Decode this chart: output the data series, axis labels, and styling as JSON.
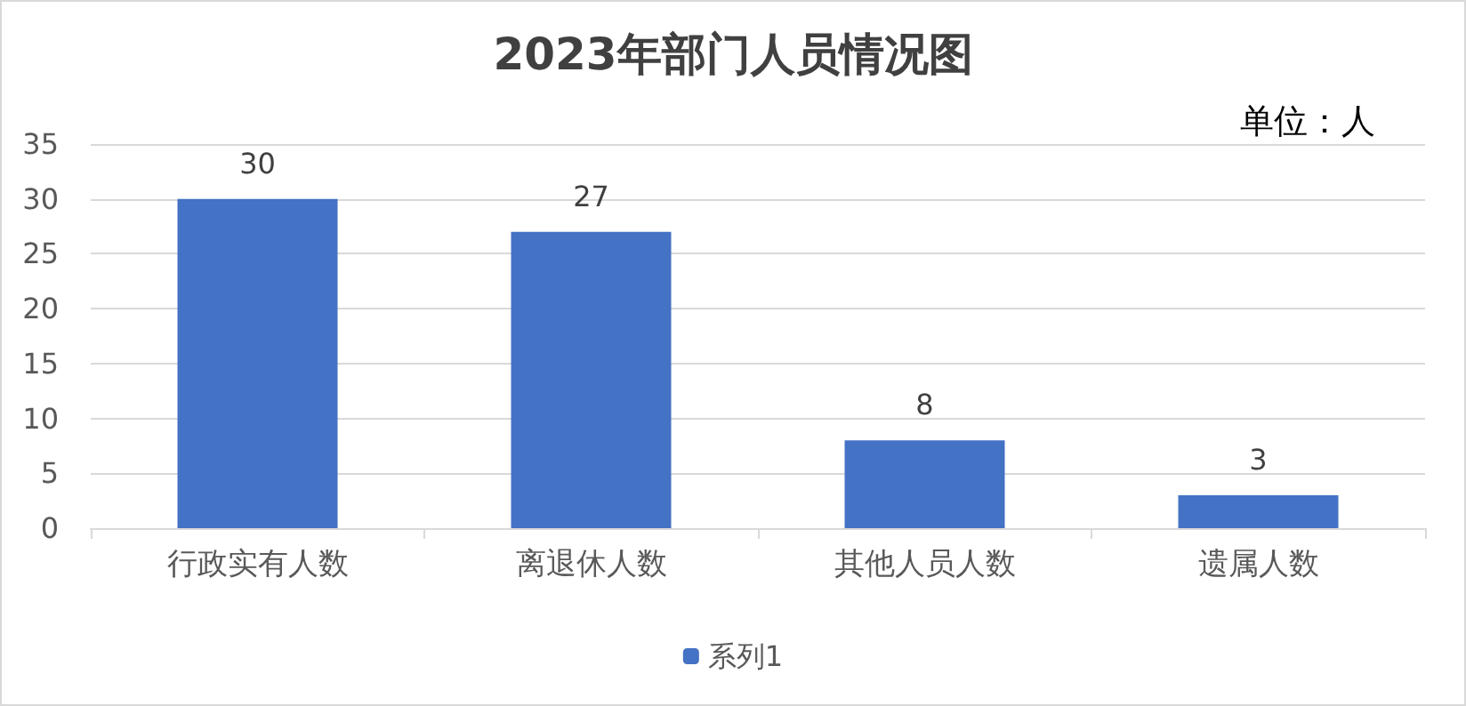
{
  "chart_data": {
    "type": "bar",
    "title": "2023年部门人员情况图",
    "annotations": [
      "单位：人"
    ],
    "categories": [
      "行政实有人数",
      "离退休人数",
      "其他人员人数",
      "遗属人数"
    ],
    "series": [
      {
        "name": "系列1",
        "color": "#4472c4",
        "values": [
          30,
          27,
          8,
          3
        ]
      }
    ],
    "ylim": [
      0,
      35
    ],
    "yticks": [
      0,
      5,
      10,
      15,
      20,
      25,
      30,
      35
    ],
    "grid": "y",
    "legend": "bottom",
    "data_labels": true
  }
}
